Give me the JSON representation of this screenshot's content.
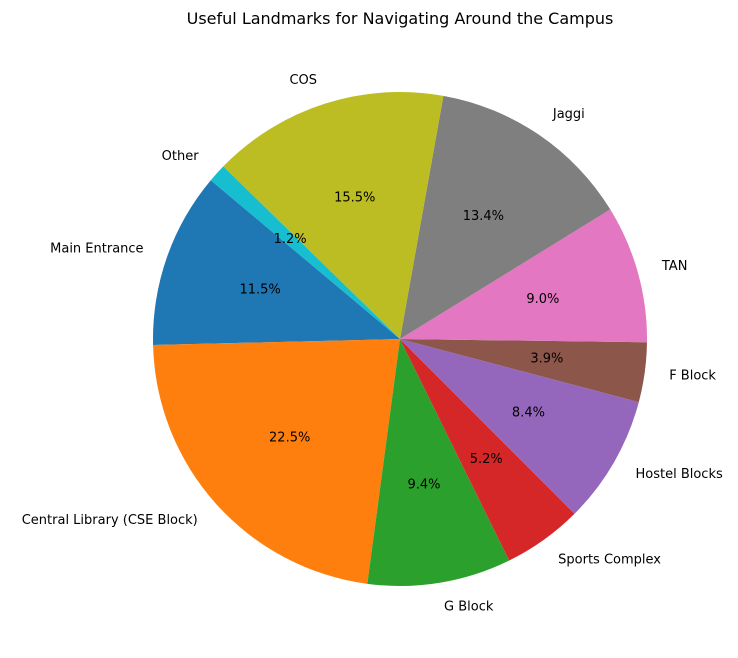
{
  "chart_data": {
    "type": "pie",
    "title": "Useful Landmarks for Navigating Around the Campus",
    "categories": [
      "Main Entrance",
      "Central Library (CSE Block)",
      "G Block",
      "Sports Complex",
      "Hostel Blocks",
      "F Block",
      "TAN",
      "Jaggi",
      "COS",
      "Other"
    ],
    "values": [
      11.5,
      22.5,
      9.4,
      5.2,
      8.4,
      3.9,
      9.0,
      13.4,
      15.5,
      1.2
    ],
    "percent_labels": [
      "11.5%",
      "22.5%",
      "9.4%",
      "5.2%",
      "8.4%",
      "3.9%",
      "9.0%",
      "13.4%",
      "15.5%",
      "1.2%"
    ],
    "colors": [
      "#1f77b4",
      "#ff7f0e",
      "#2ca02c",
      "#d62728",
      "#9467bd",
      "#8c564b",
      "#e377c2",
      "#7f7f7f",
      "#bcbd22",
      "#17becf"
    ],
    "start_angle_deg": 140,
    "direction": "counterclockwise"
  }
}
